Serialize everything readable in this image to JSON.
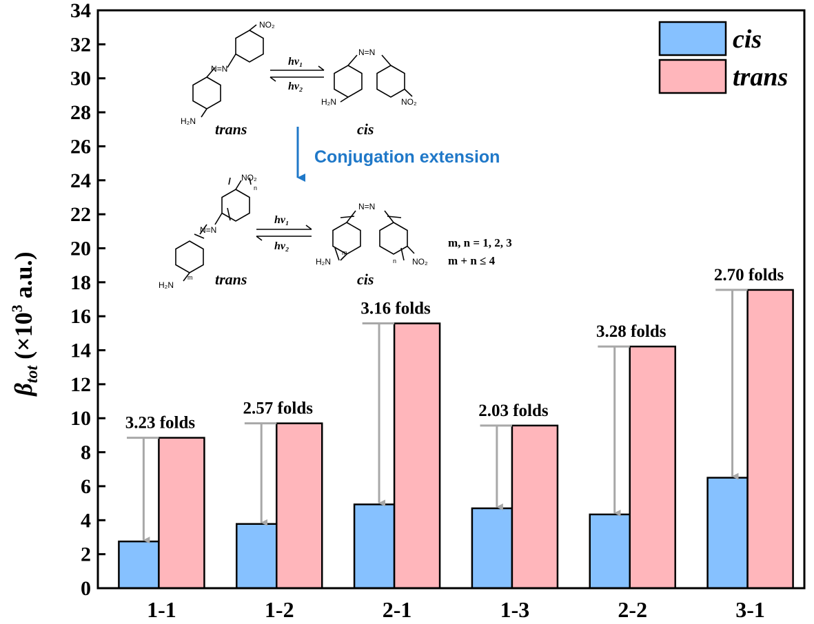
{
  "chart_data": {
    "type": "bar",
    "categories": [
      "1-1",
      "1-2",
      "2-1",
      "1-3",
      "2-2",
      "3-1"
    ],
    "series": [
      {
        "name": "cis",
        "color": "#86c1ff",
        "values": [
          2.75,
          3.78,
          4.93,
          4.7,
          4.34,
          6.5
        ]
      },
      {
        "name": "trans",
        "color": "#ffb6bb",
        "values": [
          8.85,
          9.7,
          15.58,
          9.57,
          14.22,
          17.55
        ]
      }
    ],
    "fold_labels": [
      "3.23 folds",
      "2.57 folds",
      "3.16 folds",
      "2.03 folds",
      "3.28 folds",
      "2.70 folds"
    ],
    "ylabel": {
      "symbol": "β",
      "subscript": "tot",
      "rest": " (×10",
      "sup": "3",
      "unit": " a.u.)"
    },
    "xlabel": "",
    "ylim": [
      0,
      34
    ],
    "ytick_step": 2,
    "legend_position": "top-right",
    "grid": false
  },
  "scheme": {
    "trans_label": "trans",
    "cis_label": "cis",
    "hv1": "hv₁",
    "hv2": "hv₂",
    "no2": "NO₂",
    "h2n": "H₂N",
    "n_eq_n": "N=N",
    "conjugation_label": "Conjugation extension",
    "sub_m": "m",
    "sub_n": "n",
    "condition_1": "m, n = 1, 2, 3",
    "condition_2": "m + n ≤ 4"
  },
  "colors": {
    "arrow_gray": "#a8a8a8",
    "conjugation_blue": "#1f78c8"
  }
}
